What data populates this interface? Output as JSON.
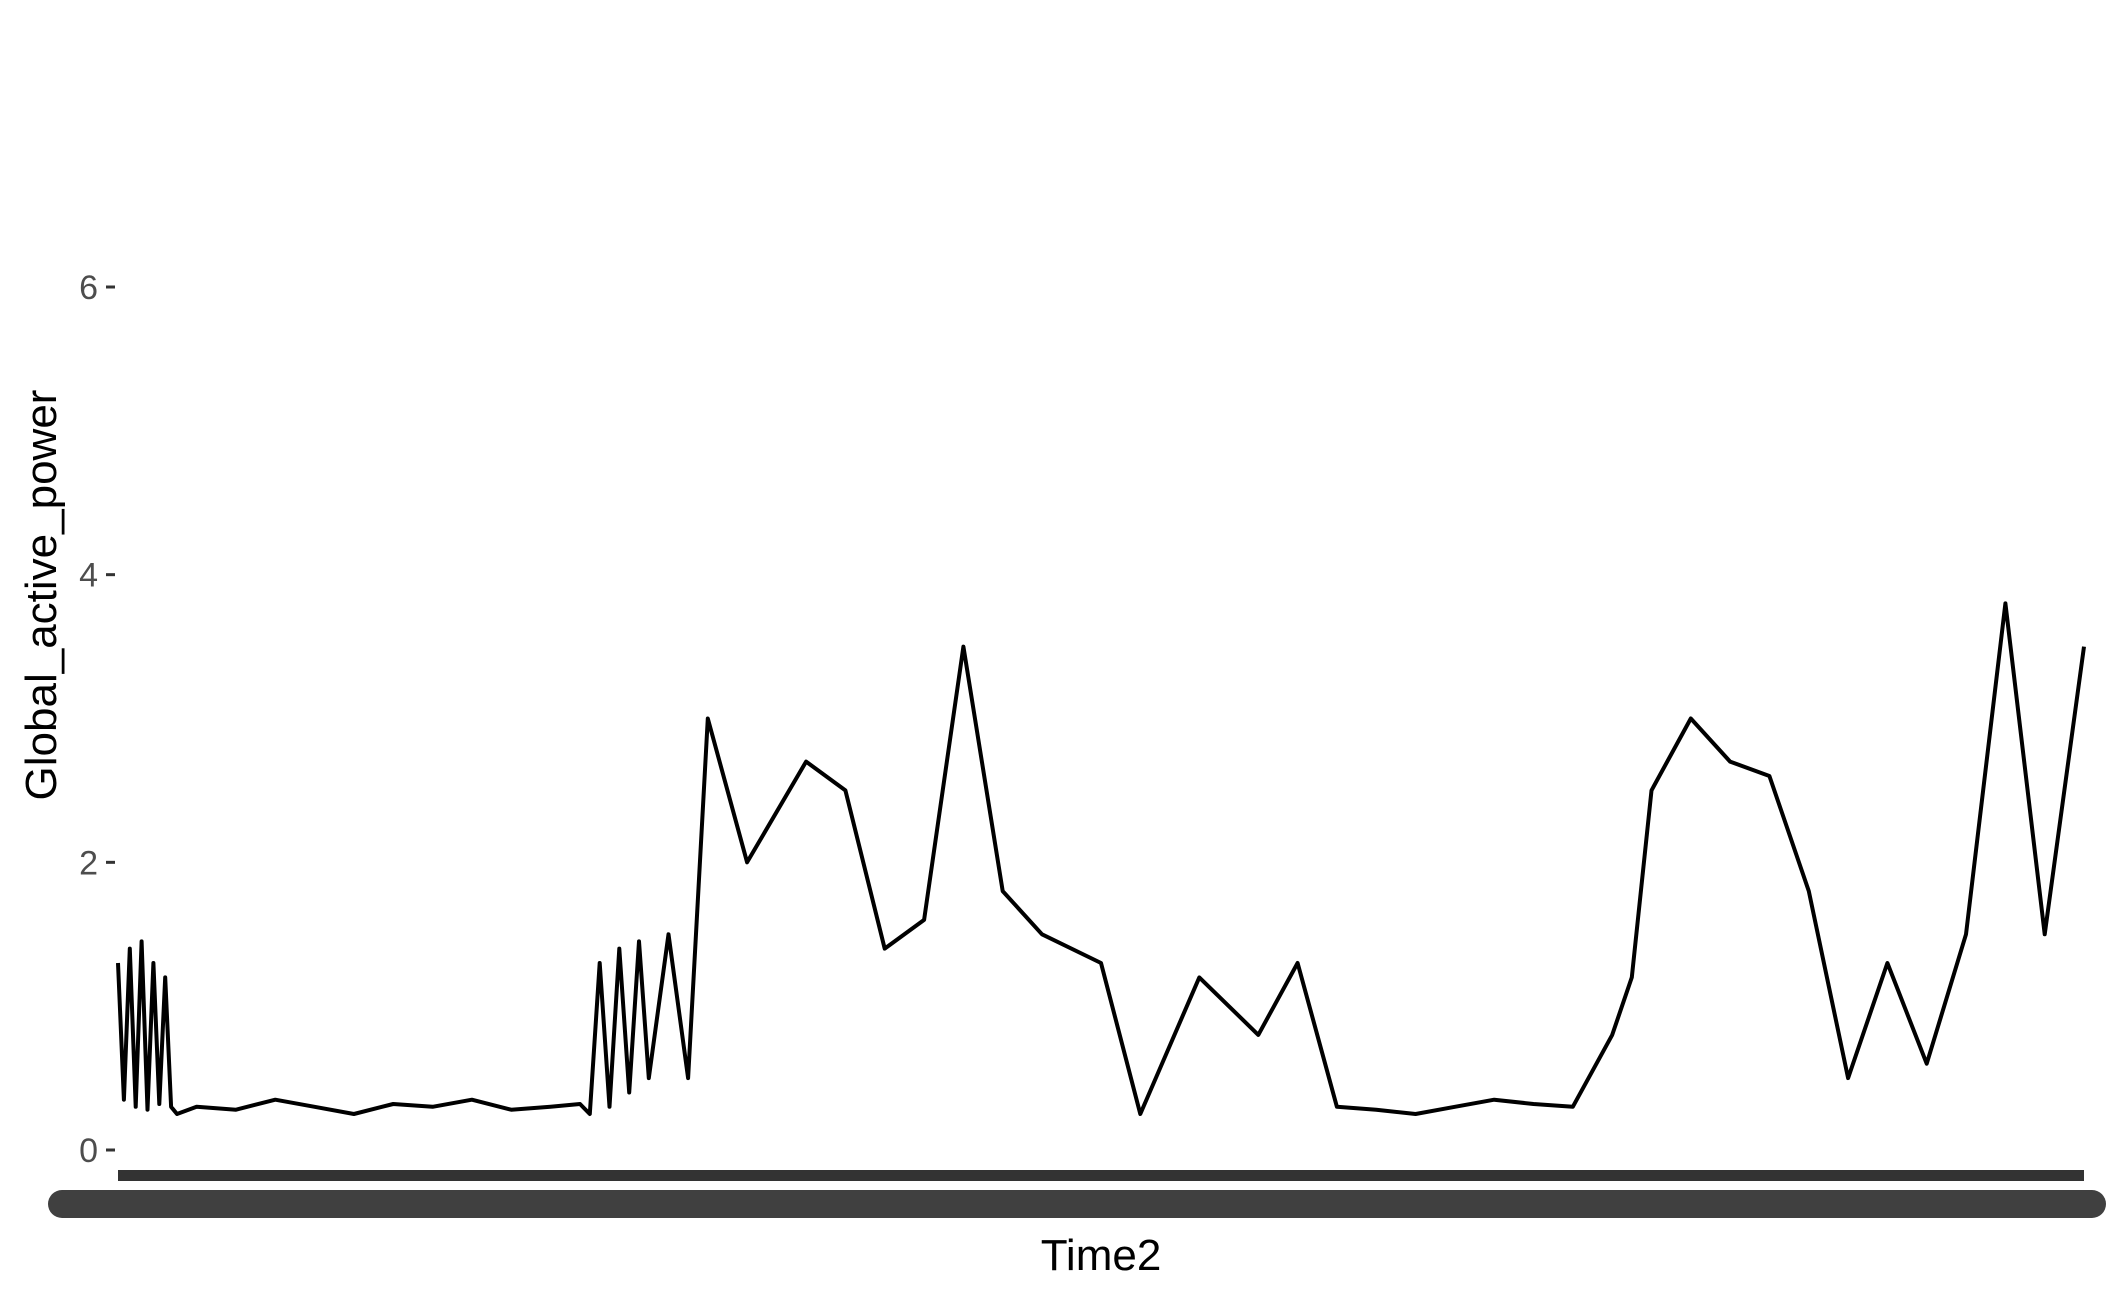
{
  "chart_data": {
    "type": "line",
    "title": "",
    "xlabel": "Time2",
    "ylabel": "Global_active_power",
    "ylim": [
      -0.3,
      7.5
    ],
    "yticks": [
      0,
      2,
      4,
      6
    ],
    "ytick_labels": [
      "0",
      "2",
      "4",
      "6"
    ],
    "grid": false,
    "legend": "none",
    "line_color": "#000000",
    "x_axis_band_color": "#333333",
    "x_tick_label_color": "#4d4d4d",
    "xlim": [
      0,
      1.0
    ],
    "series": [
      {
        "x": [
          0.0,
          0.003,
          0.006,
          0.009,
          0.012,
          0.015,
          0.018,
          0.021,
          0.024,
          0.027,
          0.03,
          0.04,
          0.06,
          0.08,
          0.1,
          0.12,
          0.14,
          0.16,
          0.18,
          0.2,
          0.22,
          0.235,
          0.24,
          0.245,
          0.25,
          0.255,
          0.26,
          0.265,
          0.27,
          0.28,
          0.29,
          0.3,
          0.32,
          0.35,
          0.37,
          0.39,
          0.41,
          0.43,
          0.45,
          0.47,
          0.5,
          0.52,
          0.55,
          0.58,
          0.6,
          0.62,
          0.64,
          0.66,
          0.68,
          0.7,
          0.72,
          0.74,
          0.76,
          0.77,
          0.78,
          0.8,
          0.82,
          0.84,
          0.86,
          0.88,
          0.9,
          0.92,
          0.94,
          0.96,
          0.98,
          1.0
        ],
        "y": [
          1.3,
          0.35,
          1.4,
          0.3,
          1.45,
          0.28,
          1.3,
          0.32,
          1.2,
          0.3,
          0.25,
          0.3,
          0.28,
          0.35,
          0.3,
          0.25,
          0.32,
          0.3,
          0.35,
          0.28,
          0.3,
          0.32,
          0.25,
          1.3,
          0.3,
          1.4,
          0.4,
          1.45,
          0.5,
          1.5,
          0.5,
          3.0,
          2.0,
          2.7,
          2.5,
          1.4,
          1.6,
          3.5,
          1.8,
          1.5,
          1.3,
          0.25,
          1.2,
          0.8,
          1.3,
          0.3,
          0.28,
          0.25,
          0.3,
          0.35,
          0.32,
          0.3,
          0.8,
          1.2,
          2.5,
          3.0,
          2.7,
          2.6,
          1.8,
          0.5,
          1.3,
          0.6,
          1.5,
          3.8,
          1.5,
          3.5
        ]
      }
    ]
  }
}
